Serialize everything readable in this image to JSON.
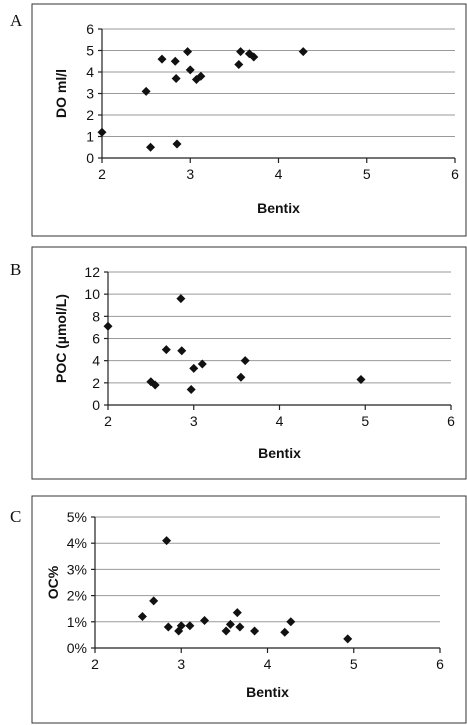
{
  "chart_data": [
    {
      "type": "scatter",
      "panel_label": "A",
      "xlabel": "Bentix",
      "ylabel": "DO ml/l",
      "xlim": [
        2,
        6
      ],
      "ylim": [
        0,
        6
      ],
      "x_ticks": [
        "2",
        "3",
        "4",
        "5",
        "6"
      ],
      "y_ticks": [
        "0",
        "1",
        "2",
        "3",
        "4",
        "5",
        "6"
      ],
      "grid": true,
      "points": [
        {
          "x": 2.0,
          "y": 1.2
        },
        {
          "x": 2.5,
          "y": 3.1
        },
        {
          "x": 2.55,
          "y": 0.5
        },
        {
          "x": 2.68,
          "y": 4.6
        },
        {
          "x": 2.83,
          "y": 4.5
        },
        {
          "x": 2.84,
          "y": 3.7
        },
        {
          "x": 2.85,
          "y": 0.65
        },
        {
          "x": 2.97,
          "y": 4.95
        },
        {
          "x": 3.0,
          "y": 4.1
        },
        {
          "x": 3.07,
          "y": 3.65
        },
        {
          "x": 3.12,
          "y": 3.8
        },
        {
          "x": 3.55,
          "y": 4.35
        },
        {
          "x": 3.57,
          "y": 4.95
        },
        {
          "x": 3.67,
          "y": 4.85
        },
        {
          "x": 3.72,
          "y": 4.7
        },
        {
          "x": 4.28,
          "y": 4.95
        }
      ]
    },
    {
      "type": "scatter",
      "panel_label": "B",
      "xlabel": "Bentix",
      "ylabel": "POC (µmol/L)",
      "xlim": [
        2,
        6
      ],
      "ylim": [
        0,
        12
      ],
      "x_ticks": [
        "2",
        "3",
        "4",
        "5",
        "6"
      ],
      "y_ticks": [
        "0",
        "2",
        "4",
        "6",
        "8",
        "10",
        "12"
      ],
      "grid": true,
      "points": [
        {
          "x": 2.0,
          "y": 7.1
        },
        {
          "x": 2.5,
          "y": 2.1
        },
        {
          "x": 2.55,
          "y": 1.8
        },
        {
          "x": 2.68,
          "y": 5.0
        },
        {
          "x": 2.85,
          "y": 9.6
        },
        {
          "x": 2.86,
          "y": 4.9
        },
        {
          "x": 2.97,
          "y": 1.4
        },
        {
          "x": 3.0,
          "y": 3.3
        },
        {
          "x": 3.1,
          "y": 3.7
        },
        {
          "x": 3.55,
          "y": 2.5
        },
        {
          "x": 3.6,
          "y": 4.0
        },
        {
          "x": 4.95,
          "y": 2.3
        }
      ]
    },
    {
      "type": "scatter",
      "panel_label": "C",
      "xlabel": "Bentix",
      "ylabel": "OC%",
      "xlim": [
        2,
        6
      ],
      "ylim": [
        0,
        5
      ],
      "x_ticks": [
        "2",
        "3",
        "4",
        "5",
        "6"
      ],
      "y_ticks": [
        "0",
        "1",
        "2",
        "3",
        "4",
        "5"
      ],
      "y_tick_suffix": "%",
      "grid": true,
      "points": [
        {
          "x": 2.55,
          "y": 1.2
        },
        {
          "x": 2.68,
          "y": 1.8
        },
        {
          "x": 2.83,
          "y": 4.1
        },
        {
          "x": 2.85,
          "y": 0.8
        },
        {
          "x": 2.97,
          "y": 0.65
        },
        {
          "x": 3.0,
          "y": 0.85
        },
        {
          "x": 3.1,
          "y": 0.85
        },
        {
          "x": 3.27,
          "y": 1.05
        },
        {
          "x": 3.52,
          "y": 0.65
        },
        {
          "x": 3.57,
          "y": 0.9
        },
        {
          "x": 3.65,
          "y": 1.35
        },
        {
          "x": 3.68,
          "y": 0.8
        },
        {
          "x": 3.85,
          "y": 0.65
        },
        {
          "x": 4.2,
          "y": 0.6
        },
        {
          "x": 4.27,
          "y": 1.0
        },
        {
          "x": 4.93,
          "y": 0.35
        }
      ]
    }
  ]
}
